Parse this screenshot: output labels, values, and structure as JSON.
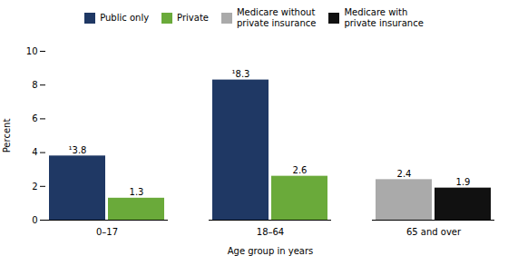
{
  "chart_data": {
    "type": "bar",
    "xlabel": "Age group in years",
    "ylabel": "Percent",
    "categories": [
      "0–17",
      "18–64",
      "65 and over"
    ],
    "series": [
      {
        "name": "Public only",
        "color": "#1f3864",
        "values": [
          3.8,
          8.3,
          null
        ],
        "value_labels": [
          "¹3.8",
          "¹8.3",
          null
        ]
      },
      {
        "name": "Private",
        "color": "#6aaa3a",
        "values": [
          1.3,
          2.6,
          null
        ],
        "value_labels": [
          "1.3",
          "2.6",
          null
        ]
      },
      {
        "name": "Medicare without\nprivate insurance",
        "color": "#aaaaaa",
        "values": [
          null,
          null,
          2.4
        ],
        "value_labels": [
          null,
          null,
          "2.4"
        ]
      },
      {
        "name": "Medicare with\nprivate insurance",
        "color": "#111111",
        "values": [
          null,
          null,
          1.9
        ],
        "value_labels": [
          null,
          null,
          "1.9"
        ]
      }
    ],
    "ylim": [
      0,
      10
    ],
    "yticks": [
      0,
      2,
      4,
      6,
      8,
      10
    ],
    "grid": false,
    "legend": "top",
    "data_labels": true
  }
}
